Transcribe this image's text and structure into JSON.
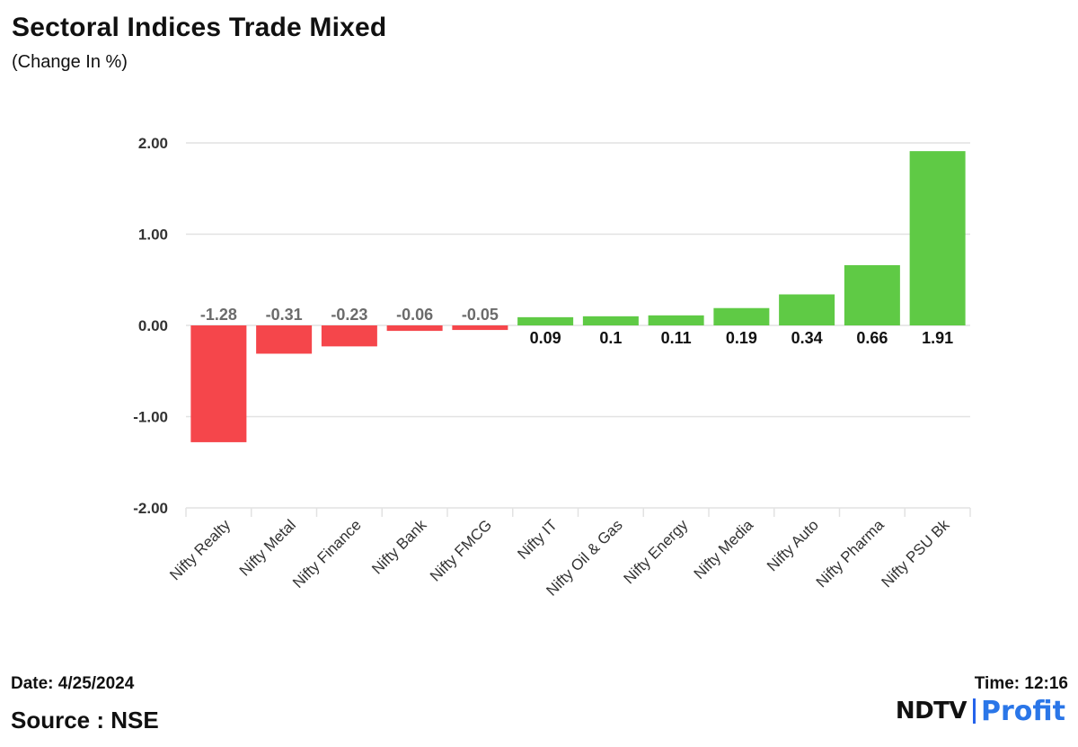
{
  "header": {
    "title": "Sectoral Indices Trade Mixed",
    "subtitle": "(Change In %)"
  },
  "footer": {
    "date": "Date: 4/25/2024",
    "source": "Source : NSE",
    "time": "Time: 12:16",
    "logo_left": "NDTV",
    "logo_right_main": "Prof",
    "logo_right_accent": "i",
    "logo_right_end": "t"
  },
  "colors": {
    "negative": "#f5464b",
    "positive": "#5fca45",
    "gridline": "#e2e2e2",
    "axis_text": "#333333",
    "neg_label": "#6b6b6b",
    "pos_label": "#111111"
  },
  "chart_data": {
    "type": "bar",
    "title": "Sectoral Indices Trade Mixed",
    "subtitle": "(Change In %)",
    "xlabel": "",
    "ylabel": "",
    "ylim": [
      -2,
      2
    ],
    "yticks": [
      2,
      1,
      0,
      -1,
      -2
    ],
    "ytick_labels": [
      "2.00",
      "1.00",
      "0.00",
      "-1.00",
      "-2.00"
    ],
    "grid": true,
    "categories": [
      "Nifty Realty",
      "Nifty Metal",
      "Nifty Finance",
      "Nifty Bank",
      "Nifty FMCG",
      "Nifty IT",
      "Nifty Oil & Gas",
      "Nifty Energy",
      "Nifty Media",
      "Nifty Auto",
      "Nifty Pharma",
      "Nifty PSU Bk"
    ],
    "values": [
      -1.28,
      -0.31,
      -0.23,
      -0.06,
      -0.05,
      0.09,
      0.1,
      0.11,
      0.19,
      0.34,
      0.66,
      1.91
    ],
    "value_labels": [
      "-1.28",
      "-0.31",
      "-0.23",
      "-0.06",
      "-0.05",
      "0.09",
      "0.1",
      "0.11",
      "0.19",
      "0.34",
      "0.66",
      "1.91"
    ]
  }
}
